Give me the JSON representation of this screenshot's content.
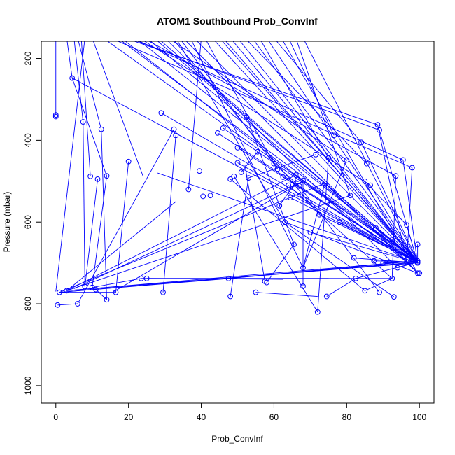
{
  "chart_data": {
    "type": "scatter",
    "title": "ATOM1 Southbound Prob_ConvInf",
    "xlabel": "Prob_ConvInf",
    "ylabel": "Pressure (mbar)",
    "xlim": [
      -4,
      104
    ],
    "ylim": [
      1043,
      158
    ],
    "y_reversed": true,
    "grid": false,
    "legend": "none",
    "color": "#0000ff",
    "x_ticks": [
      0,
      20,
      40,
      60,
      80,
      100
    ],
    "y_ticks": [
      200,
      400,
      600,
      800,
      1000
    ],
    "points": [
      [
        0,
        338
      ],
      [
        0,
        342
      ],
      [
        4.5,
        248
      ],
      [
        7.5,
        355
      ],
      [
        12.5,
        373
      ],
      [
        8,
        758
      ],
      [
        10,
        760
      ],
      [
        11,
        765
      ],
      [
        1,
        772
      ],
      [
        0.5,
        803
      ],
      [
        3,
        768
      ],
      [
        6,
        800
      ],
      [
        9.5,
        488
      ],
      [
        11.5,
        495
      ],
      [
        14,
        487
      ],
      [
        14,
        790
      ],
      [
        16.5,
        772
      ],
      [
        20,
        452
      ],
      [
        23.5,
        738
      ],
      [
        25,
        738
      ],
      [
        29.5,
        772
      ],
      [
        29,
        333
      ],
      [
        32.5,
        373
      ],
      [
        33,
        388
      ],
      [
        36.5,
        520
      ],
      [
        39.5,
        475
      ],
      [
        40.5,
        537
      ],
      [
        42.5,
        535
      ],
      [
        44.5,
        382
      ],
      [
        46,
        370
      ],
      [
        47.5,
        738
      ],
      [
        48,
        782
      ],
      [
        48,
        495
      ],
      [
        49,
        488
      ],
      [
        50,
        418
      ],
      [
        50,
        455
      ],
      [
        51,
        478
      ],
      [
        52.5,
        343
      ],
      [
        53,
        492
      ],
      [
        55,
        772
      ],
      [
        55.5,
        428
      ],
      [
        57.5,
        745
      ],
      [
        58,
        748
      ],
      [
        60,
        457
      ],
      [
        61,
        470
      ],
      [
        61.5,
        560
      ],
      [
        62.5,
        490
      ],
      [
        63,
        600
      ],
      [
        64,
        510
      ],
      [
        64.5,
        540
      ],
      [
        65.5,
        655
      ],
      [
        66,
        485
      ],
      [
        66.5,
        495
      ],
      [
        67,
        512
      ],
      [
        68,
        498
      ],
      [
        68,
        712
      ],
      [
        68,
        757
      ],
      [
        70,
        625
      ],
      [
        71.5,
        435
      ],
      [
        72.5,
        582
      ],
      [
        72,
        820
      ],
      [
        74,
        505
      ],
      [
        74.5,
        782
      ],
      [
        75,
        443
      ],
      [
        76.5,
        388
      ],
      [
        78,
        600
      ],
      [
        80,
        448
      ],
      [
        81,
        535
      ],
      [
        82.5,
        738
      ],
      [
        82,
        688
      ],
      [
        84,
        405
      ],
      [
        85,
        500
      ],
      [
        85,
        768
      ],
      [
        85.5,
        457
      ],
      [
        86.5,
        510
      ],
      [
        87.5,
        695
      ],
      [
        88,
        614
      ],
      [
        88.5,
        362
      ],
      [
        89,
        375
      ],
      [
        89,
        772
      ],
      [
        90,
        700
      ],
      [
        92.5,
        643
      ],
      [
        92.5,
        738
      ],
      [
        93,
        783
      ],
      [
        93.5,
        487
      ],
      [
        94,
        712
      ],
      [
        95.5,
        448
      ],
      [
        96.5,
        607
      ],
      [
        96.5,
        698
      ],
      [
        98,
        467
      ],
      [
        99.5,
        695
      ],
      [
        99.5,
        698
      ],
      [
        99.5,
        700
      ],
      [
        99.5,
        655
      ],
      [
        99.5,
        725
      ],
      [
        100,
        725
      ]
    ],
    "segments": [
      [
        0,
        150,
        0,
        338
      ],
      [
        3,
        150,
        4.5,
        248
      ],
      [
        5,
        150,
        7.5,
        355
      ],
      [
        6,
        150,
        12.5,
        373
      ],
      [
        7,
        150,
        9.5,
        488
      ],
      [
        8,
        150,
        0,
        770
      ],
      [
        4.5,
        248,
        99.5,
        698
      ],
      [
        4.5,
        248,
        14,
        487
      ],
      [
        7.5,
        355,
        8,
        758
      ],
      [
        12.5,
        373,
        14,
        790
      ],
      [
        10,
        760,
        14,
        487
      ],
      [
        11.5,
        495,
        8,
        758
      ],
      [
        20,
        452,
        16.5,
        772
      ],
      [
        14,
        790,
        11,
        765
      ],
      [
        1,
        772,
        16.5,
        772
      ],
      [
        0.5,
        803,
        6,
        800
      ],
      [
        3,
        768,
        99.5,
        700
      ],
      [
        3,
        768,
        99.5,
        695
      ],
      [
        1,
        772,
        99.5,
        698
      ],
      [
        6,
        800,
        32.5,
        373
      ],
      [
        1,
        772,
        74,
        505
      ],
      [
        3,
        768,
        66,
        485
      ],
      [
        16,
        770,
        68,
        500
      ],
      [
        10,
        150,
        24,
        488
      ],
      [
        23.5,
        738,
        75,
        738
      ],
      [
        25,
        738,
        92.5,
        738
      ],
      [
        25,
        738,
        62.5,
        740
      ],
      [
        36.5,
        520,
        40,
        150
      ],
      [
        29.5,
        772,
        33,
        388
      ],
      [
        29,
        333,
        99.5,
        700
      ],
      [
        13,
        150,
        99.5,
        700
      ],
      [
        15,
        150,
        98,
        467
      ],
      [
        17,
        150,
        99.5,
        698
      ],
      [
        18,
        150,
        96.5,
        698
      ],
      [
        19,
        150,
        88.5,
        362
      ],
      [
        20,
        150,
        89,
        375
      ],
      [
        21,
        150,
        95.5,
        448
      ],
      [
        22,
        150,
        99.5,
        695
      ],
      [
        23,
        150,
        86.5,
        510
      ],
      [
        24,
        150,
        93.5,
        487
      ],
      [
        25,
        150,
        99.5,
        700
      ],
      [
        27,
        150,
        99.5,
        698
      ],
      [
        28,
        150,
        99.5,
        700
      ],
      [
        30,
        150,
        94,
        712
      ],
      [
        31,
        150,
        80,
        448
      ],
      [
        32,
        150,
        72.5,
        582
      ],
      [
        33,
        150,
        63,
        600
      ],
      [
        34,
        150,
        61,
        470
      ],
      [
        35,
        150,
        99.5,
        725
      ],
      [
        37,
        150,
        68,
        712
      ],
      [
        38,
        150,
        99.5,
        700
      ],
      [
        41,
        150,
        60,
        457
      ],
      [
        43,
        150,
        99.5,
        698
      ],
      [
        45,
        150,
        99.5,
        695
      ],
      [
        46,
        150,
        99.5,
        700
      ],
      [
        48,
        150,
        99.5,
        698
      ],
      [
        50,
        150,
        99.5,
        700
      ],
      [
        52,
        150,
        85.5,
        457
      ],
      [
        54,
        150,
        99.5,
        698
      ],
      [
        56,
        150,
        75,
        443
      ],
      [
        58,
        150,
        99.5,
        700
      ],
      [
        60,
        150,
        84,
        405
      ],
      [
        62,
        150,
        99.5,
        725
      ],
      [
        64,
        150,
        76.5,
        388
      ],
      [
        66,
        150,
        81,
        535
      ],
      [
        68,
        150,
        99.5,
        698
      ],
      [
        44.5,
        382,
        99.5,
        700
      ],
      [
        46,
        370,
        99.5,
        695
      ],
      [
        50,
        418,
        99.5,
        700
      ],
      [
        51,
        478,
        55.5,
        428
      ],
      [
        52.5,
        343,
        65.5,
        655
      ],
      [
        53,
        492,
        71.5,
        435
      ],
      [
        48,
        495,
        85,
        768
      ],
      [
        49,
        488,
        72,
        820
      ],
      [
        50,
        455,
        99.5,
        698
      ],
      [
        47.5,
        738,
        99.5,
        695
      ],
      [
        48,
        782,
        53,
        492
      ],
      [
        55,
        772,
        72,
        782
      ],
      [
        57.5,
        745,
        52,
        460
      ],
      [
        58,
        748,
        65.5,
        655
      ],
      [
        60,
        457,
        67,
        512
      ],
      [
        61.5,
        560,
        66.5,
        495
      ],
      [
        62.5,
        490,
        99.5,
        700
      ],
      [
        63,
        600,
        93,
        783
      ],
      [
        64,
        510,
        92.5,
        738
      ],
      [
        64.5,
        540,
        99.5,
        700
      ],
      [
        66,
        485,
        99.5,
        695
      ],
      [
        67,
        512,
        89,
        772
      ],
      [
        68,
        498,
        68,
        757
      ],
      [
        68,
        712,
        74,
        505
      ],
      [
        70,
        625,
        99.5,
        700
      ],
      [
        72.5,
        582,
        99.5,
        698
      ],
      [
        74,
        505,
        99.5,
        725
      ],
      [
        74.5,
        782,
        82.5,
        738
      ],
      [
        75,
        443,
        72,
        820
      ],
      [
        78,
        600,
        99.5,
        700
      ],
      [
        80,
        448,
        68,
        712
      ],
      [
        81,
        535,
        3,
        768
      ],
      [
        82.5,
        738,
        99.5,
        698
      ],
      [
        82,
        688,
        99.5,
        700
      ],
      [
        84,
        405,
        99.5,
        695
      ],
      [
        85,
        500,
        96.5,
        607
      ],
      [
        85,
        768,
        92.5,
        738
      ],
      [
        86.5,
        510,
        99.5,
        700
      ],
      [
        87.5,
        695,
        99.5,
        698
      ],
      [
        88,
        614,
        99.5,
        725
      ],
      [
        88.5,
        362,
        96.5,
        698
      ],
      [
        89,
        375,
        99.5,
        700
      ],
      [
        90,
        700,
        99.5,
        698
      ],
      [
        92.5,
        643,
        99.5,
        700
      ],
      [
        93.5,
        487,
        92.5,
        738
      ],
      [
        94,
        712,
        99.5,
        698
      ],
      [
        95.5,
        448,
        99.5,
        700
      ],
      [
        98,
        467,
        96.5,
        698
      ],
      [
        96.5,
        607,
        99.5,
        700
      ],
      [
        99.5,
        655,
        99.5,
        700
      ],
      [
        1,
        772,
        48,
        738
      ],
      [
        28,
        480,
        99.5,
        700
      ],
      [
        3,
        768,
        33,
        550
      ],
      [
        5,
        763,
        68,
        500
      ],
      [
        10,
        760,
        23.5,
        738
      ],
      [
        63,
        600,
        99.5,
        725
      ],
      [
        47.5,
        738,
        99.5,
        698
      ]
    ]
  }
}
